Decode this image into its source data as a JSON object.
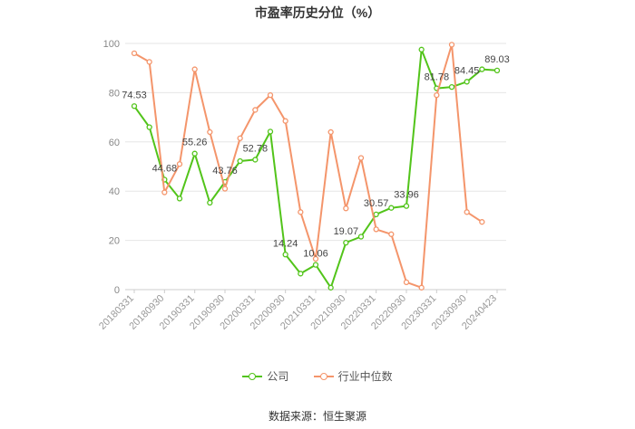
{
  "chart_data": {
    "type": "line",
    "title": "市盈率历史分位（%）",
    "ylim": [
      0,
      100
    ],
    "y_ticks": [
      "0",
      "20",
      "40",
      "60",
      "80",
      "100"
    ],
    "grid": true,
    "legend_position": "bottom",
    "x_tick_labels": [
      "20180331",
      "20180930",
      "20190331",
      "20190930",
      "20200331",
      "20200930",
      "20210331",
      "20210930",
      "20220331",
      "20220930",
      "20230331",
      "20230930",
      "20240423"
    ],
    "series": [
      {
        "name": "公司",
        "color": "#52c41a",
        "values": [
          74.53,
          66,
          44.68,
          37,
          55.26,
          35.3,
          43.76,
          52.2,
          52.78,
          64.2,
          14.24,
          6.5,
          10.06,
          0.8,
          19.07,
          21.5,
          30.57,
          33.2,
          33.96,
          97.5,
          81.78,
          82.3,
          84.45,
          89.5,
          89.03
        ],
        "labels": [
          "74.53",
          "",
          "44.68",
          "",
          "55.26",
          "",
          "43.76",
          "",
          "52.78",
          "",
          "14.24",
          "",
          "10.06",
          "",
          "19.07",
          "",
          "30.57",
          "",
          "33.96",
          "",
          "81.78",
          "",
          "84.45",
          "",
          "89.03"
        ]
      },
      {
        "name": "行业中位数",
        "color": "#f4956b",
        "values": [
          96,
          92.5,
          39.5,
          51,
          89.5,
          64,
          41,
          61.5,
          73,
          79,
          68.5,
          31.5,
          12.5,
          64,
          33,
          53.5,
          24.5,
          22.5,
          3,
          0.8,
          79,
          99.5,
          31.5,
          27.5,
          null
        ]
      }
    ]
  },
  "legend": {
    "company_label": "公司",
    "industry_label": "行业中位数"
  },
  "source": "数据来源：恒生聚源"
}
